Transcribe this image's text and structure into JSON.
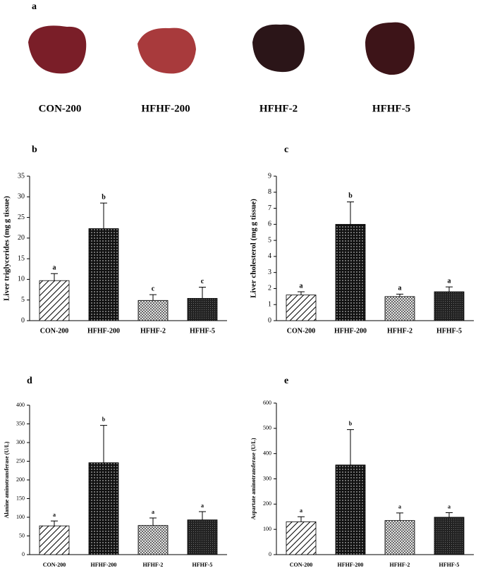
{
  "panel_a": {
    "label": "a",
    "captions": [
      "CON-200",
      "HFHF-200",
      "HFHF-2",
      "HFHF-5"
    ]
  },
  "chart_data": [
    {
      "type": "bar",
      "panel": "b",
      "y_label": "Liver triglycerides (mg g tissue)",
      "categories": [
        "CON-200",
        "HFHF-200",
        "HFHF-2",
        "HFHF-5"
      ],
      "values": [
        9.7,
        22.3,
        4.9,
        5.4
      ],
      "errors": [
        1.7,
        6.2,
        1.4,
        2.7
      ],
      "annotations": [
        "a",
        "b",
        "c",
        "c"
      ],
      "ylim": [
        0,
        35
      ],
      "yticks": [
        0,
        5,
        10,
        15,
        20,
        25,
        30,
        35
      ]
    },
    {
      "type": "bar",
      "panel": "c",
      "y_label": "Liver cholesterol (mg g tissue)",
      "categories": [
        "CON-200",
        "HFHF-200",
        "HFHF-2",
        "HFHF-5"
      ],
      "values": [
        1.6,
        6.0,
        1.5,
        1.8
      ],
      "errors": [
        0.2,
        1.4,
        0.15,
        0.3
      ],
      "annotations": [
        "a",
        "b",
        "a",
        "a"
      ],
      "ylim": [
        0,
        9
      ],
      "yticks": [
        0,
        1,
        2,
        3,
        4,
        5,
        6,
        7,
        8,
        9
      ]
    },
    {
      "type": "bar",
      "panel": "d",
      "y_label": "Alanine aminotransferase (U/L)",
      "categories": [
        "CON-200",
        "HFHF-200",
        "HFHF-2",
        "HFHF-5"
      ],
      "values": [
        77,
        246,
        78,
        93
      ],
      "errors": [
        13,
        100,
        20,
        22
      ],
      "annotations": [
        "a",
        "b",
        "a",
        "a"
      ],
      "ylim": [
        0,
        400
      ],
      "yticks": [
        0,
        50,
        100,
        150,
        200,
        250,
        300,
        350,
        400
      ]
    },
    {
      "type": "bar",
      "panel": "e",
      "y_label": "Aspartate aminotransferase (U/L)",
      "categories": [
        "CON-200",
        "HFHF-200",
        "HFHF-2",
        "HFHF-5"
      ],
      "values": [
        130,
        355,
        135,
        148
      ],
      "errors": [
        20,
        140,
        30,
        18
      ],
      "annotations": [
        "a",
        "b",
        "a",
        "a"
      ],
      "ylim": [
        0,
        600
      ],
      "yticks": [
        0,
        100,
        200,
        300,
        400,
        500,
        600
      ]
    }
  ]
}
